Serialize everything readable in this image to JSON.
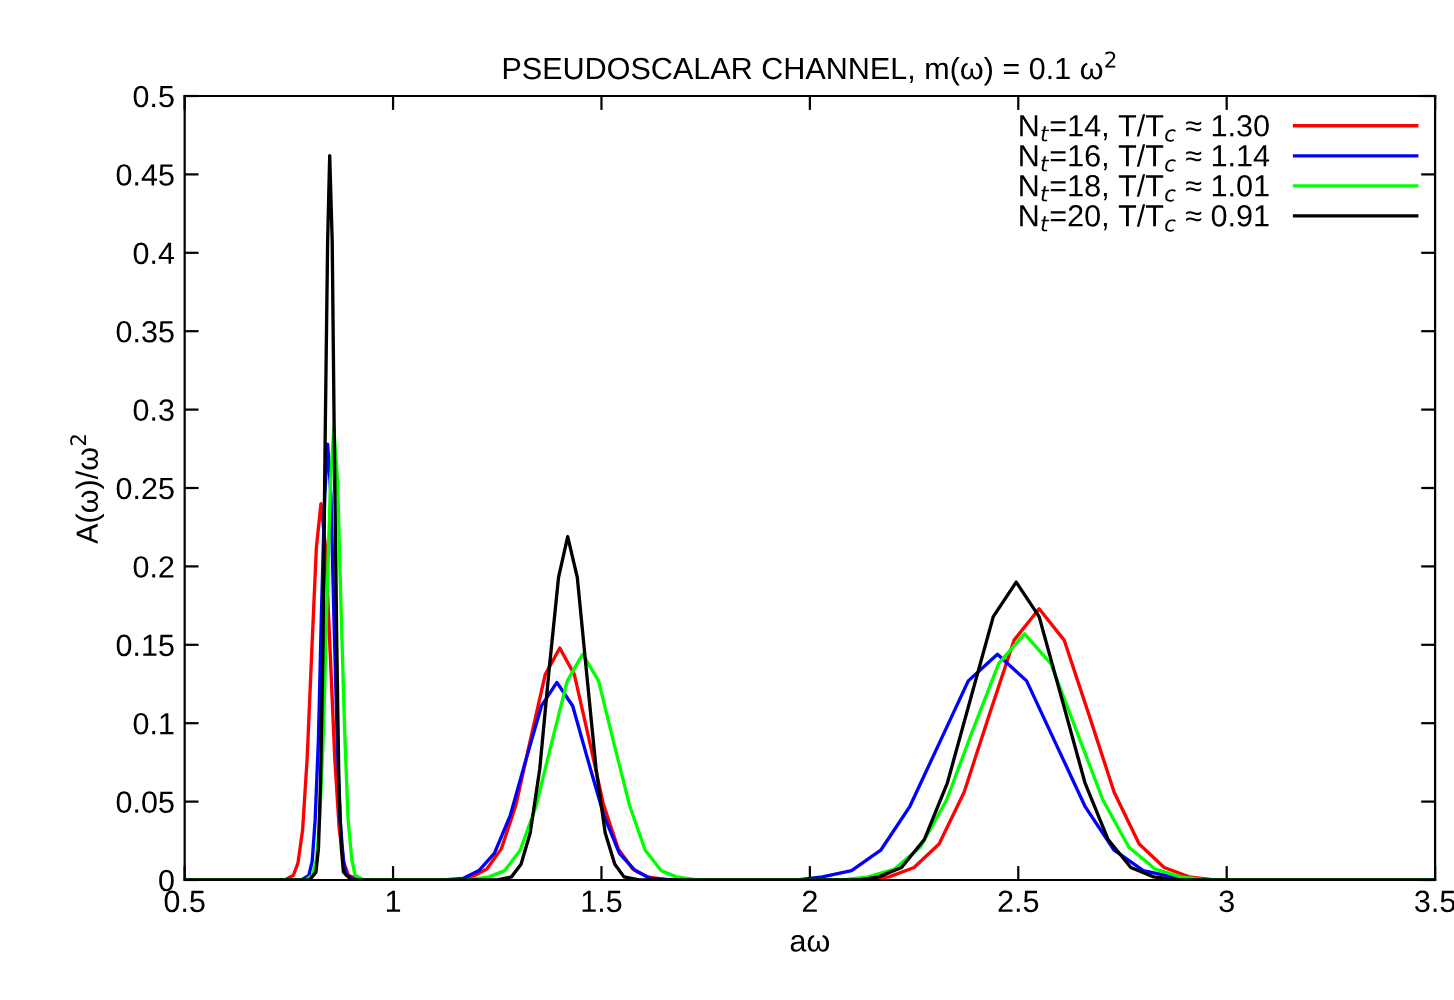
{
  "chart_data": {
    "type": "line",
    "title": "PSEUDOSCALAR CHANNEL, m(ω) = 0.1 ω$^{2}$",
    "xlabel": "aω",
    "ylabel": "A(ω)/ω$^{2}$",
    "xlim": [
      0.5,
      3.5
    ],
    "xticks": [
      0.5,
      1,
      1.5,
      2,
      2.5,
      3,
      3.5
    ],
    "ylim": [
      0,
      0.5
    ],
    "yticks": [
      0,
      0.05,
      0.1,
      0.15,
      0.2,
      0.25,
      0.3,
      0.35,
      0.4,
      0.45,
      0.5
    ],
    "grid": false,
    "legend": "top right",
    "marker": "none",
    "line_style": "solid",
    "series": [
      {
        "name": "N$_{t}$=14, T/T$_{c}$ ≈ 1.30",
        "color": "#ff0000",
        "x": [
          0.5,
          0.74,
          0.761,
          0.772,
          0.783,
          0.794,
          0.805,
          0.816,
          0.827,
          0.838,
          0.849,
          0.86,
          0.871,
          0.882,
          0.893,
          0.92,
          1.15,
          1.19,
          1.225,
          1.26,
          1.295,
          1.33,
          1.365,
          1.4,
          1.435,
          1.47,
          1.505,
          1.54,
          1.575,
          1.61,
          1.66,
          2.12,
          2.19,
          2.25,
          2.31,
          2.37,
          2.43,
          2.49,
          2.55,
          2.61,
          2.67,
          2.73,
          2.79,
          2.85,
          2.91,
          2.97,
          3.5
        ],
        "values": [
          0,
          0,
          0.003,
          0.011,
          0.032,
          0.078,
          0.146,
          0.212,
          0.24,
          0.212,
          0.146,
          0.078,
          0.032,
          0.011,
          0.003,
          0,
          0,
          0.002,
          0.007,
          0.02,
          0.048,
          0.09,
          0.131,
          0.148,
          0.131,
          0.09,
          0.048,
          0.02,
          0.007,
          0.002,
          0,
          0,
          0.002,
          0.008,
          0.023,
          0.056,
          0.105,
          0.153,
          0.173,
          0.153,
          0.105,
          0.056,
          0.023,
          0.008,
          0.002,
          0,
          0
        ]
      },
      {
        "name": "N$_{t}$=16, T/T$_{c}$ ≈ 1.14",
        "color": "#0000ff",
        "x": [
          0.5,
          0.78,
          0.798,
          0.806,
          0.813,
          0.821,
          0.828,
          0.836,
          0.843,
          0.851,
          0.858,
          0.866,
          0.873,
          0.881,
          0.888,
          0.91,
          1.12,
          1.168,
          1.206,
          1.243,
          1.281,
          1.318,
          1.356,
          1.393,
          1.431,
          1.468,
          1.506,
          1.543,
          1.581,
          1.618,
          1.67,
          1.97,
          2.03,
          2.1,
          2.17,
          2.24,
          2.31,
          2.38,
          2.45,
          2.52,
          2.59,
          2.66,
          2.73,
          2.8,
          2.87,
          2.94,
          3.5
        ],
        "values": [
          0,
          0,
          0.003,
          0.012,
          0.038,
          0.09,
          0.169,
          0.245,
          0.278,
          0.245,
          0.169,
          0.09,
          0.038,
          0.012,
          0.003,
          0,
          0,
          0.001,
          0.006,
          0.017,
          0.041,
          0.076,
          0.111,
          0.126,
          0.111,
          0.076,
          0.041,
          0.017,
          0.006,
          0.001,
          0,
          0,
          0.002,
          0.006,
          0.019,
          0.047,
          0.087,
          0.127,
          0.144,
          0.127,
          0.087,
          0.047,
          0.019,
          0.006,
          0.002,
          0,
          0
        ]
      },
      {
        "name": "N$_{t}$=18, T/T$_{c}$ ≈ 1.01",
        "color": "#00ff00",
        "x": [
          0.5,
          0.79,
          0.807,
          0.816,
          0.824,
          0.833,
          0.841,
          0.85,
          0.858,
          0.867,
          0.875,
          0.884,
          0.892,
          0.901,
          0.909,
          0.93,
          1.18,
          1.23,
          1.268,
          1.305,
          1.343,
          1.38,
          1.418,
          1.455,
          1.493,
          1.53,
          1.568,
          1.605,
          1.643,
          1.68,
          1.73,
          2.08,
          2.14,
          2.203,
          2.265,
          2.328,
          2.39,
          2.453,
          2.515,
          2.578,
          2.64,
          2.703,
          2.765,
          2.828,
          2.89,
          2.95,
          3.5
        ],
        "values": [
          0,
          0,
          0.003,
          0.013,
          0.039,
          0.094,
          0.175,
          0.254,
          0.288,
          0.254,
          0.175,
          0.094,
          0.039,
          0.013,
          0.003,
          0,
          0,
          0.002,
          0.006,
          0.019,
          0.047,
          0.087,
          0.127,
          0.144,
          0.127,
          0.087,
          0.047,
          0.019,
          0.006,
          0.002,
          0,
          0,
          0.002,
          0.007,
          0.021,
          0.051,
          0.095,
          0.138,
          0.157,
          0.138,
          0.095,
          0.051,
          0.021,
          0.007,
          0.002,
          0,
          0
        ]
      },
      {
        "name": "N$_{t}$=20, T/T$_{c}$ ≈ 0.91",
        "color": "#000000",
        "x": [
          0.5,
          0.8,
          0.815,
          0.821,
          0.826,
          0.832,
          0.837,
          0.843,
          0.848,
          0.854,
          0.859,
          0.865,
          0.87,
          0.876,
          0.881,
          0.9,
          1.25,
          1.284,
          1.307,
          1.329,
          1.352,
          1.374,
          1.397,
          1.419,
          1.442,
          1.464,
          1.487,
          1.509,
          1.532,
          1.554,
          1.59,
          2.12,
          2.165,
          2.22,
          2.275,
          2.33,
          2.385,
          2.44,
          2.495,
          2.55,
          2.605,
          2.66,
          2.715,
          2.77,
          2.825,
          2.88,
          3.5
        ],
        "values": [
          0,
          0,
          0.005,
          0.02,
          0.062,
          0.15,
          0.28,
          0.407,
          0.462,
          0.407,
          0.28,
          0.15,
          0.062,
          0.02,
          0.005,
          0,
          0,
          0.002,
          0.01,
          0.03,
          0.071,
          0.133,
          0.193,
          0.219,
          0.193,
          0.133,
          0.071,
          0.03,
          0.01,
          0.002,
          0,
          0,
          0.002,
          0.008,
          0.026,
          0.062,
          0.115,
          0.168,
          0.19,
          0.168,
          0.115,
          0.062,
          0.026,
          0.008,
          0.002,
          0,
          0
        ]
      }
    ]
  }
}
